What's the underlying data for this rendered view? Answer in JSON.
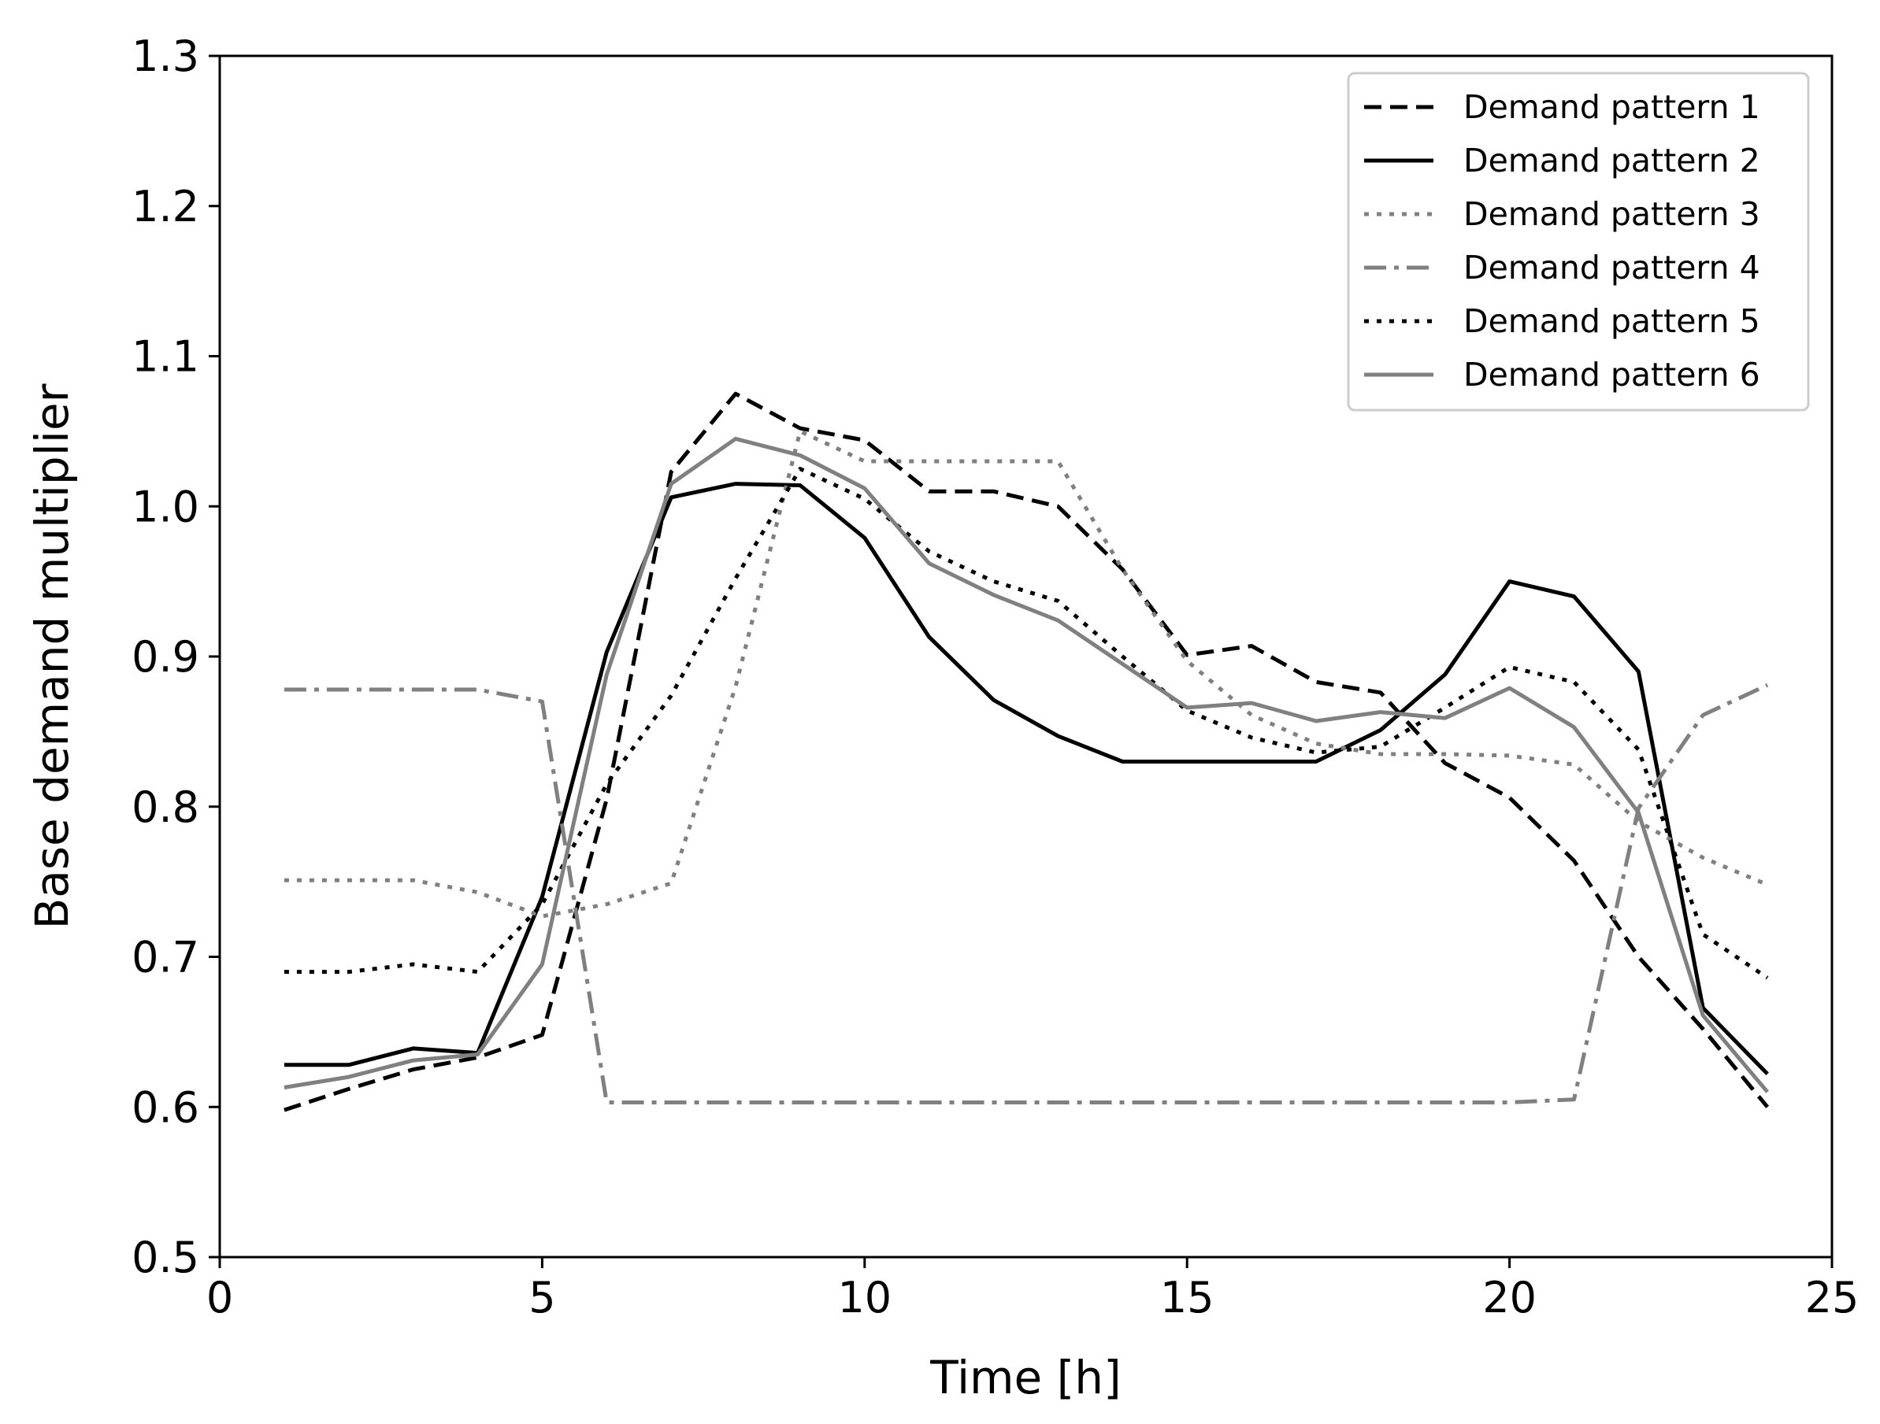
{
  "chart_data": {
    "type": "line",
    "title": "",
    "xlabel": "Time [h]",
    "ylabel": "Base demand multiplier",
    "xlim": [
      0,
      25
    ],
    "ylim": [
      0.5,
      1.3
    ],
    "xticks": [
      0,
      5,
      10,
      15,
      20,
      25
    ],
    "xtick_labels": [
      "0",
      "5",
      "10",
      "15",
      "20",
      "25"
    ],
    "yticks": [
      0.5,
      0.6,
      0.7,
      0.8,
      0.9,
      1.0,
      1.1,
      1.2,
      1.3
    ],
    "ytick_labels": [
      "0.5",
      "0.6",
      "0.7",
      "0.8",
      "0.9",
      "1.0",
      "1.1",
      "1.2",
      "1.3"
    ],
    "grid": false,
    "legend_position": "top-right",
    "x": [
      1,
      2,
      3,
      4,
      5,
      6,
      7,
      8,
      9,
      10,
      11,
      12,
      13,
      14,
      15,
      16,
      17,
      18,
      19,
      20,
      21,
      22,
      23,
      24
    ],
    "series": [
      {
        "name": "Demand pattern 1",
        "color": "#000000",
        "style": "dashed",
        "values": [
          0.598,
          0.612,
          0.625,
          0.633,
          0.648,
          0.805,
          1.023,
          1.075,
          1.052,
          1.044,
          1.01,
          1.01,
          1.0,
          0.958,
          0.901,
          0.907,
          0.883,
          0.876,
          0.829,
          0.806,
          0.764,
          0.7,
          0.652,
          0.6
        ]
      },
      {
        "name": "Demand pattern 2",
        "color": "#000000",
        "style": "solid",
        "values": [
          0.628,
          0.628,
          0.639,
          0.636,
          0.74,
          0.903,
          1.006,
          1.015,
          1.014,
          0.979,
          0.913,
          0.871,
          0.847,
          0.83,
          0.83,
          0.83,
          0.83,
          0.851,
          0.888,
          0.95,
          0.94,
          0.89,
          0.666,
          0.622
        ]
      },
      {
        "name": "Demand pattern 3",
        "color": "#808080",
        "style": "dotted",
        "values": [
          0.751,
          0.751,
          0.751,
          0.743,
          0.727,
          0.735,
          0.749,
          0.88,
          1.05,
          1.03,
          1.03,
          1.03,
          1.03,
          0.958,
          0.897,
          0.861,
          0.842,
          0.835,
          0.835,
          0.834,
          0.828,
          0.79,
          0.766,
          0.748
        ]
      },
      {
        "name": "Demand pattern 4",
        "color": "#808080",
        "style": "dashdot",
        "values": [
          0.878,
          0.878,
          0.878,
          0.878,
          0.87,
          0.603,
          0.603,
          0.603,
          0.603,
          0.603,
          0.603,
          0.603,
          0.603,
          0.603,
          0.603,
          0.603,
          0.603,
          0.603,
          0.603,
          0.603,
          0.605,
          0.799,
          0.861,
          0.881
        ]
      },
      {
        "name": "Demand pattern 5",
        "color": "#000000",
        "style": "dotted",
        "values": [
          0.69,
          0.69,
          0.695,
          0.69,
          0.735,
          0.815,
          0.874,
          0.952,
          1.025,
          1.005,
          0.97,
          0.95,
          0.937,
          0.9,
          0.864,
          0.846,
          0.836,
          0.84,
          0.866,
          0.893,
          0.883,
          0.838,
          0.715,
          0.686
        ]
      },
      {
        "name": "Demand pattern 6",
        "color": "#808080",
        "style": "solid",
        "values": [
          0.613,
          0.62,
          0.631,
          0.635,
          0.695,
          0.888,
          1.015,
          1.045,
          1.034,
          1.012,
          0.962,
          0.941,
          0.924,
          0.895,
          0.866,
          0.869,
          0.857,
          0.863,
          0.859,
          0.879,
          0.853,
          0.796,
          0.661,
          0.61
        ]
      }
    ]
  }
}
